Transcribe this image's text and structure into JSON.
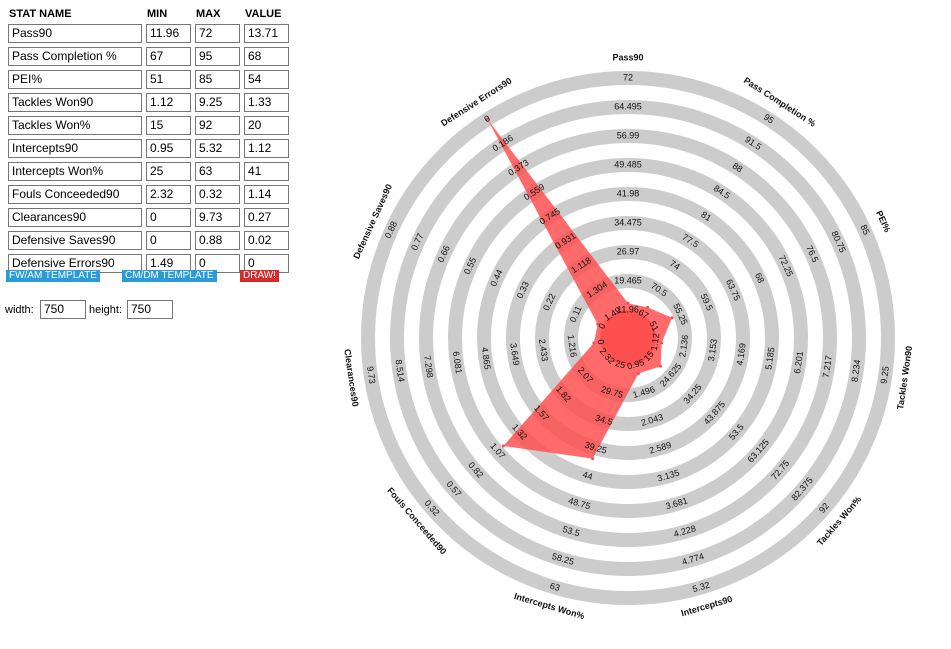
{
  "table": {
    "headers": {
      "name": "STAT NAME",
      "min": "MIN",
      "max": "MAX",
      "value": "VALUE"
    },
    "rows": [
      {
        "name": "Pass90",
        "min": "11.96",
        "max": "72",
        "value": "13.71"
      },
      {
        "name": "Pass Completion %",
        "min": "67",
        "max": "95",
        "value": "68"
      },
      {
        "name": "PEI%",
        "min": "51",
        "max": "85",
        "value": "54"
      },
      {
        "name": "Tackles  Won90",
        "min": "1.12",
        "max": "9.25",
        "value": "1.33"
      },
      {
        "name": "Tackles  Won%",
        "min": "15",
        "max": "92",
        "value": "20"
      },
      {
        "name": "Intercepts90",
        "min": "0.95",
        "max": "5.32",
        "value": "1.12"
      },
      {
        "name": "Intercepts Won%",
        "min": "25",
        "max": "63",
        "value": "41"
      },
      {
        "name": "Fouls Conceeded90",
        "min": "2.32",
        "max": "0.32",
        "value": "1.14"
      },
      {
        "name": "Clearances90",
        "min": "0",
        "max": "9.73",
        "value": "0.27"
      },
      {
        "name": "Defensive Saves90",
        "min": "0",
        "max": "0.88",
        "value": "0.02"
      },
      {
        "name": "Defensive Errors90",
        "min": "1.49",
        "max": "0",
        "value": "0"
      }
    ]
  },
  "buttons": {
    "fw_am": "FW/AM TEMPLATE",
    "cm_dm": "CM/DM TEMPLATE",
    "draw": "DRAW!"
  },
  "dimensions": {
    "width_label": "width:",
    "width_value": "750",
    "height_label": "height:",
    "height_value": "750"
  },
  "chart_data": {
    "type": "radar",
    "fill_color": "#ff4a4a",
    "ring_color": "#cccccc",
    "center_color": "#ff6b6b",
    "axes": [
      {
        "name": "Pass90",
        "ticks": [
          "11.96",
          "19.465",
          "26.97",
          "34.475",
          "41.98",
          "49.485",
          "56.99",
          "64.495",
          "72"
        ],
        "value": 13.71,
        "fraction": 0.029
      },
      {
        "name": "Pass Completion %",
        "ticks": [
          "67",
          "70.5",
          "74",
          "77.5",
          "81",
          "84.5",
          "88",
          "91.5",
          "95"
        ],
        "value": 68,
        "fraction": 0.036
      },
      {
        "name": "PEI%",
        "ticks": [
          "51",
          "55.25",
          "59.5",
          "63.75",
          "68",
          "72.25",
          "76.5",
          "80.75",
          "85"
        ],
        "value": 54,
        "fraction": 0.088
      },
      {
        "name": "Tackles  Won90",
        "ticks": [
          "1.12",
          "2.136",
          "3.153",
          "4.169",
          "5.185",
          "6.201",
          "7.217",
          "8.234",
          "9.25"
        ],
        "value": 1.33,
        "fraction": 0.026
      },
      {
        "name": "Tackles  Won%",
        "ticks": [
          "15",
          "24.625",
          "34.25",
          "43.875",
          "53.5",
          "63.125",
          "72.75",
          "82.375",
          "92"
        ],
        "value": 20,
        "fraction": 0.065
      },
      {
        "name": "Intercepts90",
        "ticks": [
          "0.95",
          "1.496",
          "2.043",
          "2.589",
          "3.135",
          "3.681",
          "4.228",
          "4.774",
          "5.32"
        ],
        "value": 1.12,
        "fraction": 0.039
      },
      {
        "name": "Intercepts Won%",
        "ticks": [
          "25",
          "29.75",
          "34.5",
          "39.25",
          "44",
          "48.75",
          "53.5",
          "58.25",
          "63"
        ],
        "value": 41,
        "fraction": 0.421
      },
      {
        "name": "Fouls Conceeded90",
        "ticks": [
          "2.32",
          "2.07",
          "1.82",
          "1.57",
          "1.32",
          "1.07",
          "0.82",
          "0.57",
          "0.32"
        ],
        "value": 1.14,
        "fraction": 0.59
      },
      {
        "name": "Clearances90",
        "ticks": [
          "0",
          "1.216",
          "2.433",
          "3.649",
          "4.865",
          "6.081",
          "7.298",
          "8.514",
          "9.73"
        ],
        "value": 0.27,
        "fraction": 0.028
      },
      {
        "name": "Defensive Saves90",
        "ticks": [
          "0",
          "0.11",
          "0.22",
          "0.33",
          "0.44",
          "0.55",
          "0.66",
          "0.77",
          "0.88"
        ],
        "value": 0.02,
        "fraction": 0.023
      },
      {
        "name": "Defensive Errors90",
        "ticks": [
          "1.49",
          "1.304",
          "1.118",
          "0.931",
          "0.745",
          "0.559",
          "0.373",
          "0.186",
          "0"
        ],
        "value": 0,
        "fraction": 1.0
      }
    ]
  }
}
